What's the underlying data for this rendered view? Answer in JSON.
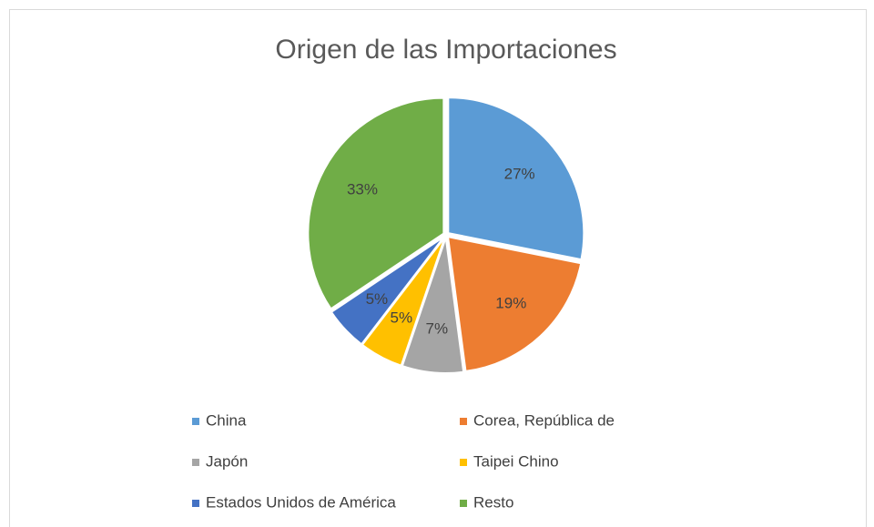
{
  "chart_data": {
    "type": "pie",
    "title": "Origen de las Importaciones",
    "categories": [
      "China",
      "Corea, República de",
      "Japón",
      "Taipei Chino",
      "Estados Unidos de América",
      "Resto"
    ],
    "values": [
      27,
      19,
      7,
      5,
      5,
      33
    ],
    "value_labels": [
      "27%",
      "19%",
      "7%",
      "5%",
      "5%",
      "33%"
    ],
    "colors": [
      "#5b9bd5",
      "#ed7d31",
      "#a5a5a5",
      "#ffc000",
      "#4472c4",
      "#70ad47"
    ],
    "legend": "bottom"
  }
}
